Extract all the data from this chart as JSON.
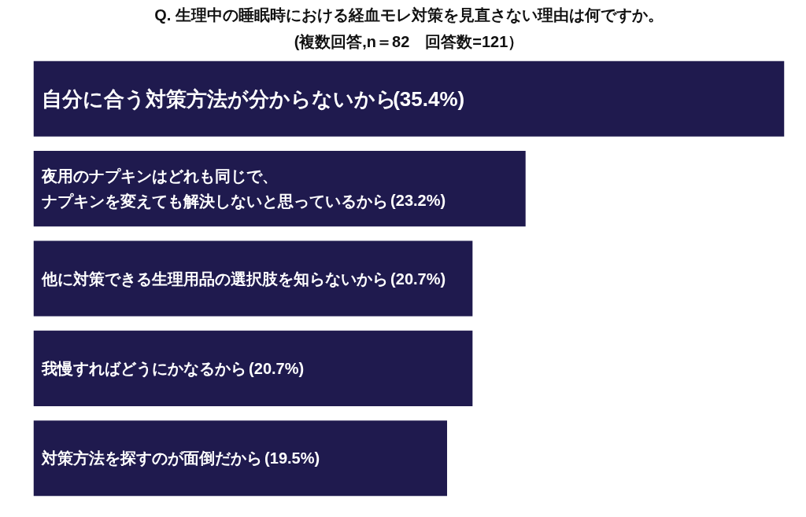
{
  "chart_data": {
    "type": "bar",
    "orientation": "horizontal",
    "title": "Q. 生理中の睡眠時における経血モレ対策を見直さない理由は何ですか。",
    "subtitle": "(複数回答,n＝82　回答数=121）",
    "categories": [
      "自分に合う対策方法が分からないから",
      "夜用のナプキンはどれも同じで、ナプキンを変えても解決しないと思っているから",
      "他に対策できる生理用品の選択肢を知らないから",
      "我慢すればどうにかなるから",
      "対策方法を探すのが面倒だから"
    ],
    "values": [
      35.4,
      23.2,
      20.7,
      20.7,
      19.5
    ],
    "value_labels": [
      "(35.4%)",
      "(23.2%)",
      "(20.7%)",
      "(20.7%)",
      "(19.5%)"
    ],
    "color": "#1f1a4e",
    "tick_labels": false
  }
}
